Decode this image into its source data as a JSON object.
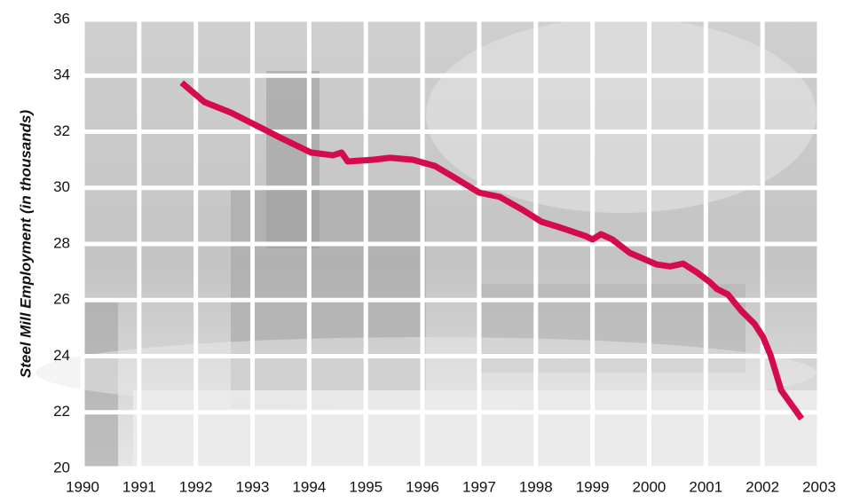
{
  "chart_data": {
    "type": "line",
    "ylabel": "Steel Mill Employment (in thousands)",
    "x": [
      1991.75,
      1992.15,
      1992.62,
      1993.09,
      1993.48,
      1994.03,
      1994.42,
      1994.57,
      1994.68,
      1995.12,
      1995.43,
      1995.83,
      1996.22,
      1996.56,
      1997.0,
      1997.36,
      1997.78,
      1998.1,
      1998.41,
      1998.88,
      1999.0,
      1999.15,
      1999.35,
      1999.66,
      2000.13,
      2000.37,
      2000.6,
      2000.84,
      2001.07,
      2001.2,
      2001.39,
      2001.62,
      2001.86,
      2002.01,
      2002.14,
      2002.33,
      2002.69
    ],
    "values": [
      33.75,
      33.06,
      32.68,
      32.2,
      31.8,
      31.26,
      31.16,
      31.26,
      30.94,
      31.0,
      31.07,
      31.0,
      30.78,
      30.37,
      29.83,
      29.68,
      29.2,
      28.79,
      28.6,
      28.28,
      28.16,
      28.35,
      28.16,
      27.68,
      27.27,
      27.2,
      27.3,
      26.99,
      26.64,
      26.39,
      26.2,
      25.63,
      25.15,
      24.68,
      24.05,
      22.78,
      21.77
    ],
    "color": "#d40c4c",
    "xlim": [
      1990,
      2003
    ],
    "xticks": [
      1990,
      1991,
      1992,
      1993,
      1994,
      1995,
      1996,
      1997,
      1998,
      1999,
      2000,
      2001,
      2002,
      2003
    ],
    "ylim": [
      20,
      36
    ],
    "yticks": [
      20,
      22,
      24,
      26,
      28,
      30,
      32,
      34,
      36
    ],
    "grid": true
  }
}
